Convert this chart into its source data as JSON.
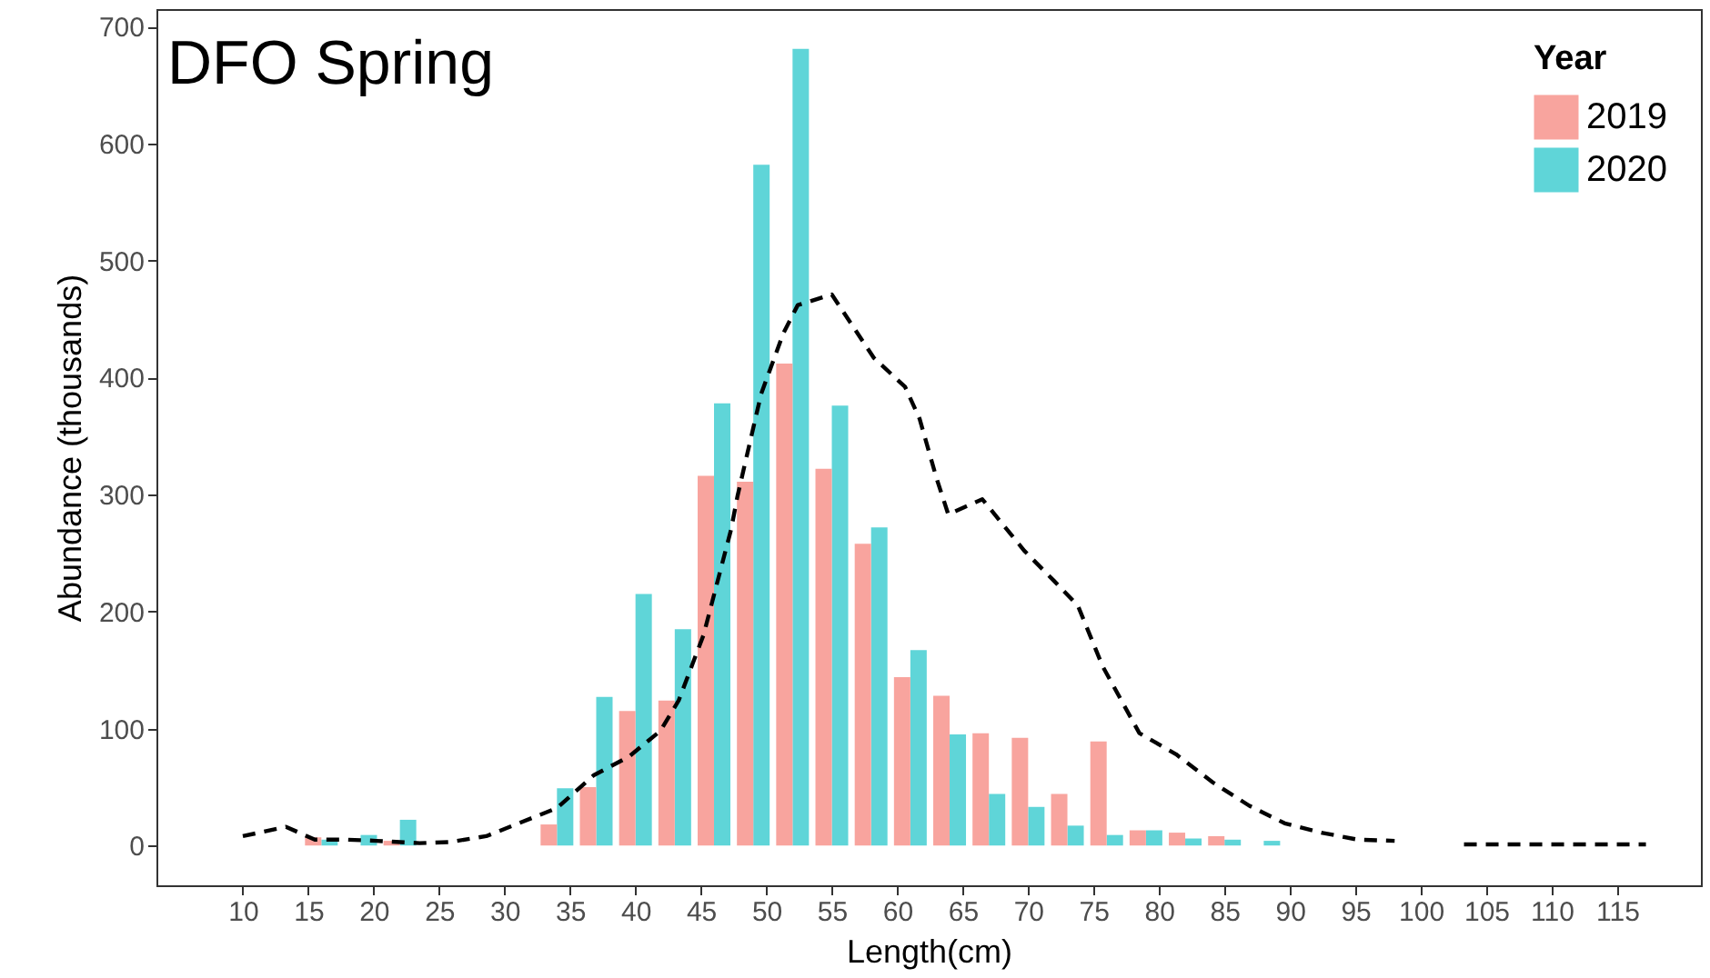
{
  "chart_data": {
    "type": "bar",
    "title": "DFO Spring",
    "xlabel": "Length(cm)",
    "ylabel": "Abundance (thousands)",
    "legend_title": "Year",
    "legend": "top right",
    "line_style": "dashed",
    "x": [
      16,
      19,
      22,
      25,
      28,
      31,
      34,
      37,
      40,
      43,
      46,
      49,
      52,
      55,
      58,
      61,
      64,
      67,
      70,
      73,
      76,
      79,
      82,
      85,
      88
    ],
    "series": [
      {
        "name": "2019",
        "color": "#f8a49e",
        "values": [
          7,
          null,
          4,
          null,
          null,
          null,
          18,
          50,
          115,
          124,
          316,
          311,
          412,
          322,
          258,
          144,
          128,
          96,
          92,
          44,
          89,
          13,
          11,
          8,
          null
        ]
      },
      {
        "name": "2020",
        "color": "#5fd5d8",
        "values": [
          5,
          9,
          22,
          null,
          null,
          null,
          49,
          127,
          215,
          185,
          378,
          582,
          681,
          376,
          272,
          167,
          95,
          44,
          33,
          17,
          9,
          13,
          6,
          5,
          4
        ]
      },
      {
        "type": "line",
        "color": "#000000",
        "x": [
          10,
          13.3,
          15.5,
          18,
          20.2,
          23.5,
          25.8,
          28.6,
          31.3,
          34,
          36.8,
          39.5,
          41.9,
          43.3,
          45.2,
          47.3,
          47.8,
          49.6,
          51.3,
          52.4,
          55,
          58.2,
          60.6,
          61.7,
          63,
          63.9,
          66.5,
          69.7,
          72,
          73.8,
          75.7,
          78.5,
          81.3,
          84.1,
          86.9,
          89.6,
          92.4,
          95.2,
          98,
          101,
          103.3,
          108,
          112,
          117.2
        ],
        "values": [
          8,
          16,
          5,
          5,
          4,
          2,
          3,
          8,
          20,
          32,
          60,
          76,
          98,
          124,
          180,
          270,
          299,
          386,
          438,
          462,
          471,
          417,
          392,
          365,
          314,
          283,
          296,
          252,
          226,
          205,
          153,
          96,
          78,
          54,
          34,
          19,
          11,
          5,
          4,
          null,
          1,
          1,
          1,
          1
        ]
      }
    ],
    "xlim": [
      3.4,
      121.4
    ],
    "xticks": [
      10,
      15,
      20,
      25,
      30,
      35,
      40,
      45,
      50,
      55,
      60,
      65,
      70,
      75,
      80,
      85,
      90,
      95,
      100,
      105,
      110,
      115
    ],
    "ylim": [
      -34,
      715
    ],
    "yticks": [
      0,
      100,
      200,
      300,
      400,
      500,
      600,
      700
    ]
  }
}
